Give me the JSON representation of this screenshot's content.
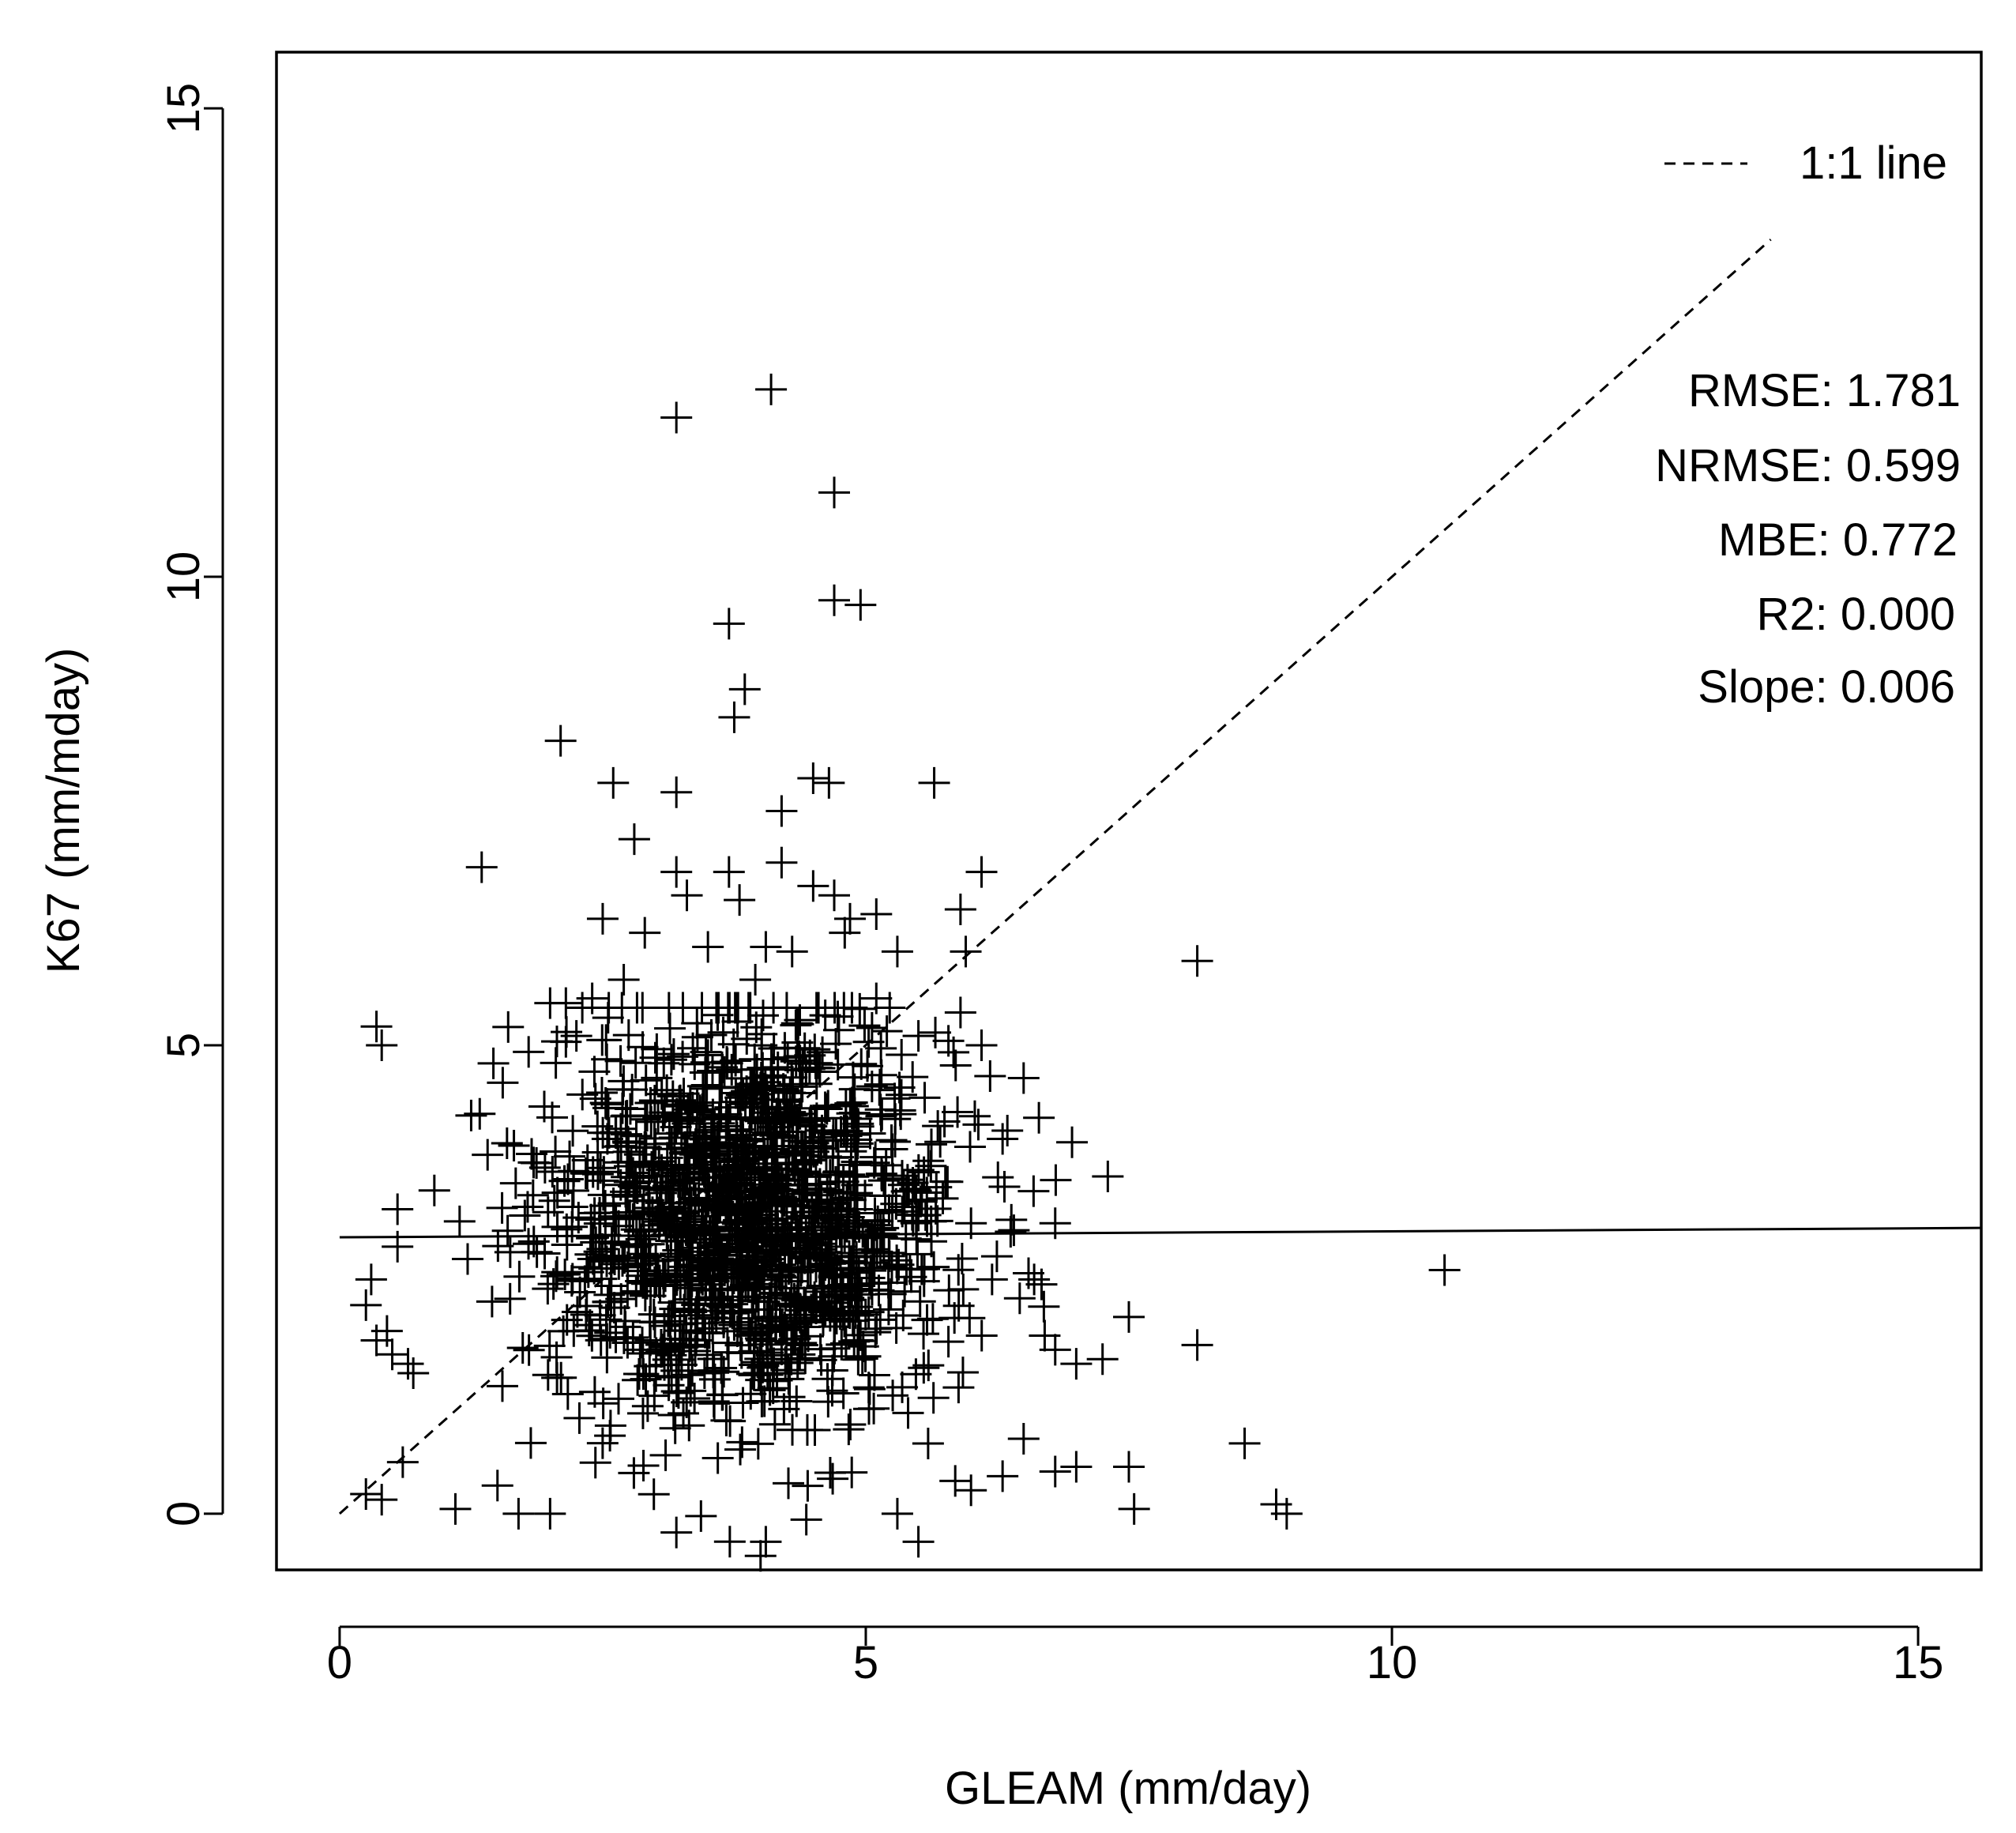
{
  "chart_data": {
    "type": "scatter",
    "title": "",
    "xlabel": "GLEAM (mm/day)",
    "ylabel": "K67 (mm/mday)",
    "xlim": [
      -0.6,
      15.6
    ],
    "ylim": [
      -0.6,
      15.6
    ],
    "x_ticks": [
      0,
      5,
      10,
      15
    ],
    "x_tick_labels": [
      "0",
      "5",
      "10",
      "15"
    ],
    "y_ticks": [
      0,
      5,
      10,
      15
    ],
    "y_tick_labels": [
      "0",
      "5",
      "10",
      "15"
    ],
    "grid": false,
    "marker": "plus",
    "color": "#000000",
    "legend": {
      "position": "top-right",
      "entries": [
        {
          "label": "1:1 line",
          "style": "dashed"
        }
      ]
    },
    "stats": [
      "RMSE: 1.781",
      "NRMSE: 0.599",
      "MBE: 0.772",
      "R2: 0.000",
      "Slope: 0.006"
    ],
    "reference_line": {
      "label": "1:1 line",
      "x": [
        0,
        13.6
      ],
      "y": [
        0,
        13.6
      ]
    },
    "fit_line": {
      "x": [
        0,
        15.6
      ],
      "y": [
        2.95,
        3.05
      ]
    },
    "cluster": {
      "center": [
        3.9,
        3.15
      ],
      "spread": [
        0.95,
        1.05
      ],
      "n": 1600
    },
    "outliers": [
      [
        4.1,
        12.0
      ],
      [
        3.2,
        11.7
      ],
      [
        4.7,
        10.9
      ],
      [
        4.7,
        9.75
      ],
      [
        4.95,
        9.7
      ],
      [
        3.7,
        9.5
      ],
      [
        3.85,
        8.8
      ],
      [
        3.75,
        8.5
      ],
      [
        2.1,
        8.25
      ],
      [
        2.6,
        7.8
      ],
      [
        3.2,
        7.7
      ],
      [
        4.5,
        7.85
      ],
      [
        4.65,
        7.8
      ],
      [
        5.65,
        7.8
      ],
      [
        4.2,
        7.5
      ],
      [
        2.8,
        7.2
      ],
      [
        1.35,
        6.9
      ],
      [
        4.2,
        6.95
      ],
      [
        3.2,
        6.85
      ],
      [
        3.7,
        6.85
      ],
      [
        6.1,
        6.85
      ],
      [
        3.3,
        6.6
      ],
      [
        3.8,
        6.55
      ],
      [
        4.5,
        6.7
      ],
      [
        4.7,
        6.6
      ],
      [
        5.9,
        6.45
      ],
      [
        2.5,
        6.35
      ],
      [
        4.85,
        6.35
      ],
      [
        5.1,
        6.4
      ],
      [
        4.8,
        6.2
      ],
      [
        2.9,
        6.2
      ],
      [
        3.5,
        6.05
      ],
      [
        4.05,
        6.05
      ],
      [
        4.3,
        6.0
      ],
      [
        5.3,
        6.0
      ],
      [
        5.95,
        6.0
      ],
      [
        8.15,
        5.9
      ],
      [
        2.7,
        5.7
      ],
      [
        3.95,
        5.7
      ],
      [
        5.1,
        5.5
      ],
      [
        2.0,
        5.45
      ],
      [
        2.15,
        5.45
      ],
      [
        2.4,
        5.5
      ],
      [
        3.6,
        5.4
      ],
      [
        5.9,
        5.35
      ],
      [
        0.35,
        5.2
      ],
      [
        0.4,
        5.0
      ],
      [
        2.25,
        5.1
      ],
      [
        5.2,
        5.15
      ],
      [
        5.5,
        5.1
      ],
      [
        6.1,
        5.0
      ],
      [
        6.5,
        4.65
      ],
      [
        1.55,
        4.6
      ],
      [
        1.25,
        4.25
      ],
      [
        6.3,
        4.0
      ],
      [
        0.9,
        3.45
      ],
      [
        0.55,
        3.25
      ],
      [
        6.8,
        3.1
      ],
      [
        6.0,
        3.1
      ],
      [
        7.3,
        3.6
      ],
      [
        0.3,
        2.5
      ],
      [
        0.55,
        2.85
      ],
      [
        6.6,
        2.5
      ],
      [
        6.2,
        2.5
      ],
      [
        10.5,
        2.6
      ],
      [
        0.35,
        1.85
      ],
      [
        0.5,
        1.7
      ],
      [
        0.65,
        1.6
      ],
      [
        0.45,
        1.95
      ],
      [
        0.7,
        1.5
      ],
      [
        6.7,
        1.9
      ],
      [
        6.8,
        1.75
      ],
      [
        7.5,
        2.1
      ],
      [
        7.25,
        1.65
      ],
      [
        8.15,
        1.8
      ],
      [
        7.0,
        1.6
      ],
      [
        0.6,
        0.55
      ],
      [
        0.4,
        0.15
      ],
      [
        1.1,
        0.05
      ],
      [
        1.5,
        0.3
      ],
      [
        1.7,
        0.0
      ],
      [
        2.0,
        0.0
      ],
      [
        6.5,
        0.8
      ],
      [
        8.6,
        0.75
      ],
      [
        7.5,
        0.5
      ],
      [
        6.8,
        0.45
      ],
      [
        7.0,
        0.5
      ],
      [
        6.3,
        0.4
      ],
      [
        5.85,
        0.35
      ],
      [
        7.55,
        0.05
      ],
      [
        8.9,
        0.1
      ],
      [
        9.0,
        0.0
      ],
      [
        5.5,
        -0.3
      ],
      [
        4.0,
        -0.45
      ],
      [
        4.05,
        -0.3
      ],
      [
        3.2,
        -0.2
      ],
      [
        5.3,
        0.0
      ],
      [
        6.0,
        0.25
      ]
    ]
  }
}
